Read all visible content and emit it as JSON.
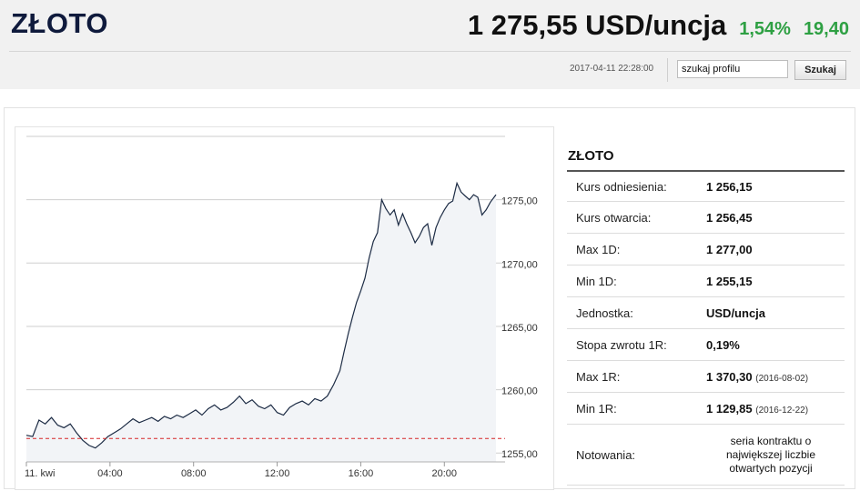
{
  "header": {
    "title": "ZŁOTO",
    "price": "1 275,55 USD/uncja",
    "change_pct": "1,54%",
    "change_abs": "19,40",
    "timestamp": "2017-04-11 22:28:00",
    "search_value": "szukaj profilu",
    "search_button": "Szukaj"
  },
  "colors": {
    "accent_green": "#2ea043",
    "title_navy": "#0f1a3c",
    "chart_line": "#1c2b44",
    "reference_line": "#d62728"
  },
  "info": {
    "title": "ZŁOTO",
    "rows": [
      {
        "label": "Kurs odniesienia:",
        "value": "1 256,15",
        "date": ""
      },
      {
        "label": "Kurs otwarcia:",
        "value": "1 256,45",
        "date": ""
      },
      {
        "label": "Max 1D:",
        "value": "1 277,00",
        "date": ""
      },
      {
        "label": "Min 1D:",
        "value": "1 255,15",
        "date": ""
      },
      {
        "label": "Jednostka:",
        "value": "USD/uncja",
        "date": ""
      },
      {
        "label": "Stopa zwrotu 1R:",
        "value": "0,19%",
        "date": ""
      },
      {
        "label": "Max 1R:",
        "value": "1 370,30",
        "date": "(2016-08-02)"
      },
      {
        "label": "Min 1R:",
        "value": "1 129,85",
        "date": "(2016-12-22)"
      },
      {
        "label": "Notowania:",
        "value": "seria kontraktu o największej liczbie otwartych pozycji",
        "date": ""
      }
    ]
  },
  "chart_data": {
    "type": "area",
    "x_unit": "hour",
    "x_ticks": [
      {
        "x": 0,
        "label": "11. kwi"
      },
      {
        "x": 4,
        "label": "04:00"
      },
      {
        "x": 8,
        "label": "08:00"
      },
      {
        "x": 12,
        "label": "12:00"
      },
      {
        "x": 16,
        "label": "16:00"
      },
      {
        "x": 20,
        "label": "20:00"
      }
    ],
    "y_ticks": [
      {
        "y": 1255,
        "label": "1255,00"
      },
      {
        "y": 1260,
        "label": "1260,00"
      },
      {
        "y": 1265,
        "label": "1265,00"
      },
      {
        "y": 1270,
        "label": "1270,00"
      },
      {
        "y": 1275,
        "label": "1275,00"
      }
    ],
    "ylim": [
      1254.3,
      1280
    ],
    "xlim": [
      0,
      22.47
    ],
    "grid": true,
    "reference_line": {
      "value": 1256.15,
      "style": "dashed"
    },
    "series": [
      {
        "points": [
          [
            0,
            1256.4
          ],
          [
            0.3,
            1256.3
          ],
          [
            0.6,
            1257.6
          ],
          [
            0.9,
            1257.3
          ],
          [
            1.2,
            1257.8
          ],
          [
            1.5,
            1257.2
          ],
          [
            1.8,
            1257.0
          ],
          [
            2.1,
            1257.3
          ],
          [
            2.4,
            1256.6
          ],
          [
            2.7,
            1256.0
          ],
          [
            3.0,
            1255.6
          ],
          [
            3.3,
            1255.4
          ],
          [
            3.6,
            1255.8
          ],
          [
            3.9,
            1256.3
          ],
          [
            4.2,
            1256.6
          ],
          [
            4.5,
            1256.9
          ],
          [
            4.8,
            1257.3
          ],
          [
            5.1,
            1257.7
          ],
          [
            5.4,
            1257.4
          ],
          [
            5.7,
            1257.6
          ],
          [
            6.0,
            1257.8
          ],
          [
            6.3,
            1257.5
          ],
          [
            6.6,
            1257.9
          ],
          [
            6.9,
            1257.7
          ],
          [
            7.2,
            1258.0
          ],
          [
            7.5,
            1257.8
          ],
          [
            7.8,
            1258.1
          ],
          [
            8.1,
            1258.4
          ],
          [
            8.4,
            1258.0
          ],
          [
            8.7,
            1258.5
          ],
          [
            9.0,
            1258.8
          ],
          [
            9.3,
            1258.4
          ],
          [
            9.6,
            1258.6
          ],
          [
            9.9,
            1259.0
          ],
          [
            10.2,
            1259.5
          ],
          [
            10.5,
            1258.9
          ],
          [
            10.8,
            1259.2
          ],
          [
            11.1,
            1258.7
          ],
          [
            11.4,
            1258.5
          ],
          [
            11.7,
            1258.8
          ],
          [
            12.0,
            1258.2
          ],
          [
            12.3,
            1258.0
          ],
          [
            12.6,
            1258.6
          ],
          [
            12.9,
            1258.9
          ],
          [
            13.2,
            1259.1
          ],
          [
            13.5,
            1258.8
          ],
          [
            13.8,
            1259.3
          ],
          [
            14.1,
            1259.1
          ],
          [
            14.4,
            1259.5
          ],
          [
            14.7,
            1260.4
          ],
          [
            15.0,
            1261.5
          ],
          [
            15.2,
            1263.0
          ],
          [
            15.4,
            1264.4
          ],
          [
            15.6,
            1265.7
          ],
          [
            15.8,
            1266.9
          ],
          [
            16.0,
            1267.8
          ],
          [
            16.2,
            1268.8
          ],
          [
            16.4,
            1270.4
          ],
          [
            16.6,
            1271.7
          ],
          [
            16.8,
            1272.4
          ],
          [
            17.0,
            1275.0
          ],
          [
            17.2,
            1274.3
          ],
          [
            17.4,
            1273.8
          ],
          [
            17.6,
            1274.2
          ],
          [
            17.8,
            1273.0
          ],
          [
            18.0,
            1273.9
          ],
          [
            18.2,
            1273.1
          ],
          [
            18.4,
            1272.4
          ],
          [
            18.6,
            1271.6
          ],
          [
            18.8,
            1272.1
          ],
          [
            19.0,
            1272.8
          ],
          [
            19.2,
            1273.1
          ],
          [
            19.4,
            1271.4
          ],
          [
            19.6,
            1272.8
          ],
          [
            19.8,
            1273.6
          ],
          [
            20.0,
            1274.2
          ],
          [
            20.2,
            1274.7
          ],
          [
            20.4,
            1274.9
          ],
          [
            20.6,
            1276.3
          ],
          [
            20.8,
            1275.6
          ],
          [
            21.0,
            1275.3
          ],
          [
            21.2,
            1275.0
          ],
          [
            21.4,
            1275.4
          ],
          [
            21.6,
            1275.2
          ],
          [
            21.8,
            1273.8
          ],
          [
            22.0,
            1274.2
          ],
          [
            22.2,
            1274.8
          ],
          [
            22.47,
            1275.4
          ]
        ]
      }
    ]
  }
}
